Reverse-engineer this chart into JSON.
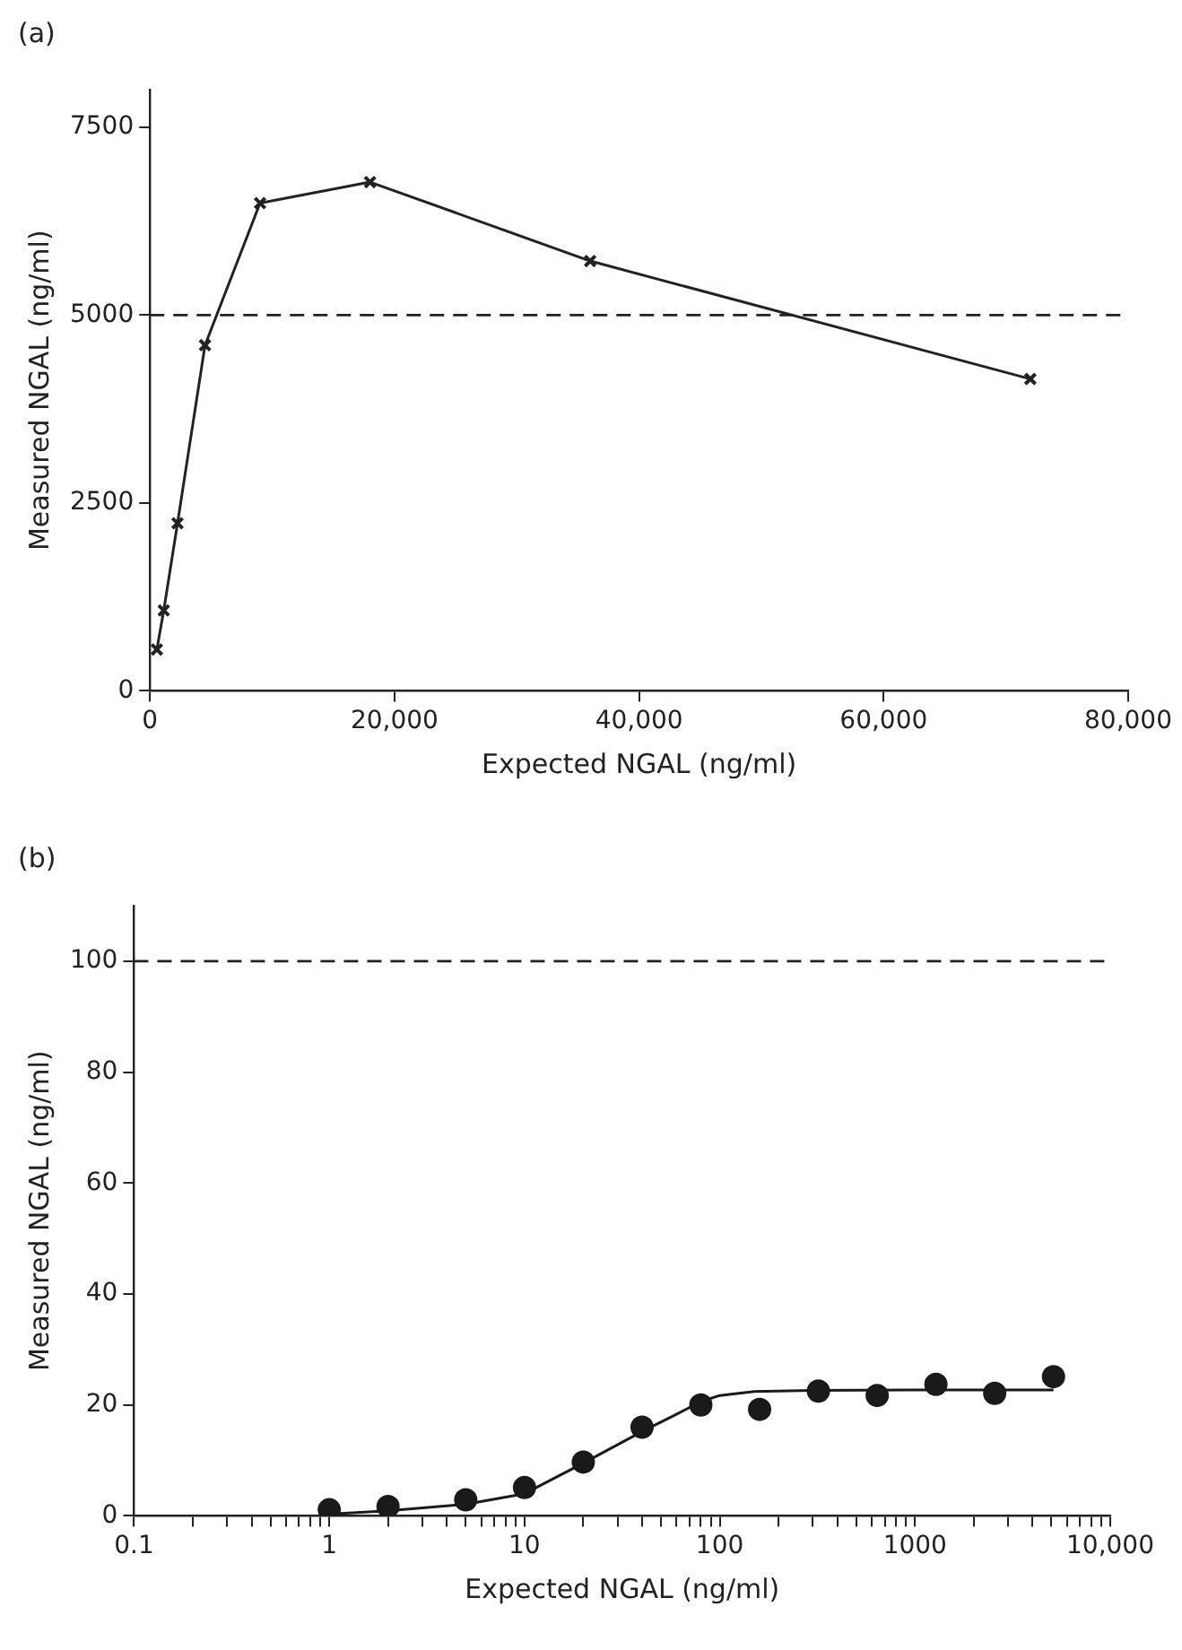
{
  "chart_data": [
    {
      "type": "line",
      "annotations": [
        "(a)"
      ],
      "xlabel": "Expected NGAL (ng/ml)",
      "ylabel": "Measured NGAL (ng/ml)",
      "marker": "cross",
      "grid": false,
      "legend": false,
      "xlim": [
        0,
        80000
      ],
      "xticks": [
        0,
        {
          "value": 20000,
          "label": "20,000"
        },
        {
          "value": 40000,
          "label": "40,000"
        },
        {
          "value": 60000,
          "label": "60,000"
        },
        {
          "value": 80000,
          "label": "80,000"
        }
      ],
      "ylim": [
        0,
        8000
      ],
      "yticks": [
        0,
        2500,
        5000,
        7500
      ],
      "ref_lines": [
        {
          "axis": "y",
          "value": 5000,
          "line_style": "dashed",
          "color": "#222222"
        }
      ],
      "series": [
        {
          "color": "#222222",
          "x": [
            562,
            1125,
            2250,
            4500,
            9000,
            18000,
            36000,
            72000
          ],
          "values": [
            550,
            1070,
            2230,
            4600,
            6490,
            6770,
            5720,
            4150
          ]
        }
      ]
    },
    {
      "type": "scatter",
      "annotations": [
        "(b)"
      ],
      "xlabel": "Expected NGAL (ng/ml)",
      "ylabel": "Measured NGAL (ng/ml)",
      "log": "x",
      "grid": false,
      "legend": false,
      "xlim": [
        0.1,
        10000
      ],
      "xticks": [
        0.1,
        {
          "value": 0.2,
          "label": null
        },
        {
          "value": 0.3,
          "label": null
        },
        {
          "value": 0.4,
          "label": null
        },
        {
          "value": 0.5,
          "label": null
        },
        {
          "value": 0.6,
          "label": null
        },
        {
          "value": 0.7,
          "label": null
        },
        {
          "value": 0.8,
          "label": null
        },
        {
          "value": 0.9,
          "label": null
        },
        1,
        {
          "value": 2,
          "label": null
        },
        {
          "value": 3,
          "label": null
        },
        {
          "value": 4,
          "label": null
        },
        {
          "value": 5,
          "label": null
        },
        {
          "value": 6,
          "label": null
        },
        {
          "value": 7,
          "label": null
        },
        {
          "value": 8,
          "label": null
        },
        {
          "value": 9,
          "label": null
        },
        10,
        {
          "value": 20,
          "label": null
        },
        {
          "value": 30,
          "label": null
        },
        {
          "value": 40,
          "label": null
        },
        {
          "value": 50,
          "label": null
        },
        {
          "value": 60,
          "label": null
        },
        {
          "value": 70,
          "label": null
        },
        {
          "value": 80,
          "label": null
        },
        {
          "value": 90,
          "label": null
        },
        100,
        {
          "value": 200,
          "label": null
        },
        {
          "value": 300,
          "label": null
        },
        {
          "value": 400,
          "label": null
        },
        {
          "value": 500,
          "label": null
        },
        {
          "value": 600,
          "label": null
        },
        {
          "value": 700,
          "label": null
        },
        {
          "value": 800,
          "label": null
        },
        {
          "value": 900,
          "label": null
        },
        1000,
        {
          "value": 2000,
          "label": null
        },
        {
          "value": 3000,
          "label": null
        },
        {
          "value": 4000,
          "label": null
        },
        {
          "value": 5000,
          "label": null
        },
        {
          "value": 6000,
          "label": null
        },
        {
          "value": 7000,
          "label": null
        },
        {
          "value": 8000,
          "label": null
        },
        {
          "value": 9000,
          "label": null
        },
        {
          "value": 10000,
          "label": "10,000"
        }
      ],
      "ylim": [
        0,
        110
      ],
      "yticks": [
        0,
        20,
        40,
        60,
        80,
        100
      ],
      "ref_lines": [
        {
          "axis": "y",
          "value": 100,
          "line_style": "dashed",
          "color": "#222222"
        }
      ],
      "series": [
        {
          "type": "scatter",
          "marker": "circle",
          "color": "#1a1a1a",
          "x": [
            1,
            2,
            5,
            10,
            20,
            40,
            80,
            160,
            320,
            640,
            1280,
            2560,
            5120
          ],
          "values": [
            1.1,
            1.7,
            2.9,
            5.1,
            9.7,
            16,
            20,
            19.2,
            22.5,
            21.7,
            23.7,
            22.1,
            25.1
          ]
        },
        {
          "type": "line",
          "marker": "none",
          "color": "#1a1a1a",
          "x": [
            1,
            2,
            5,
            10,
            20,
            40,
            60,
            80,
            100,
            150,
            300,
            1000,
            5120
          ],
          "values": [
            0.3,
            0.9,
            2.1,
            4,
            9.5,
            15.2,
            18.3,
            20.6,
            21.7,
            22.4,
            22.6,
            22.7,
            22.7
          ]
        }
      ]
    }
  ]
}
